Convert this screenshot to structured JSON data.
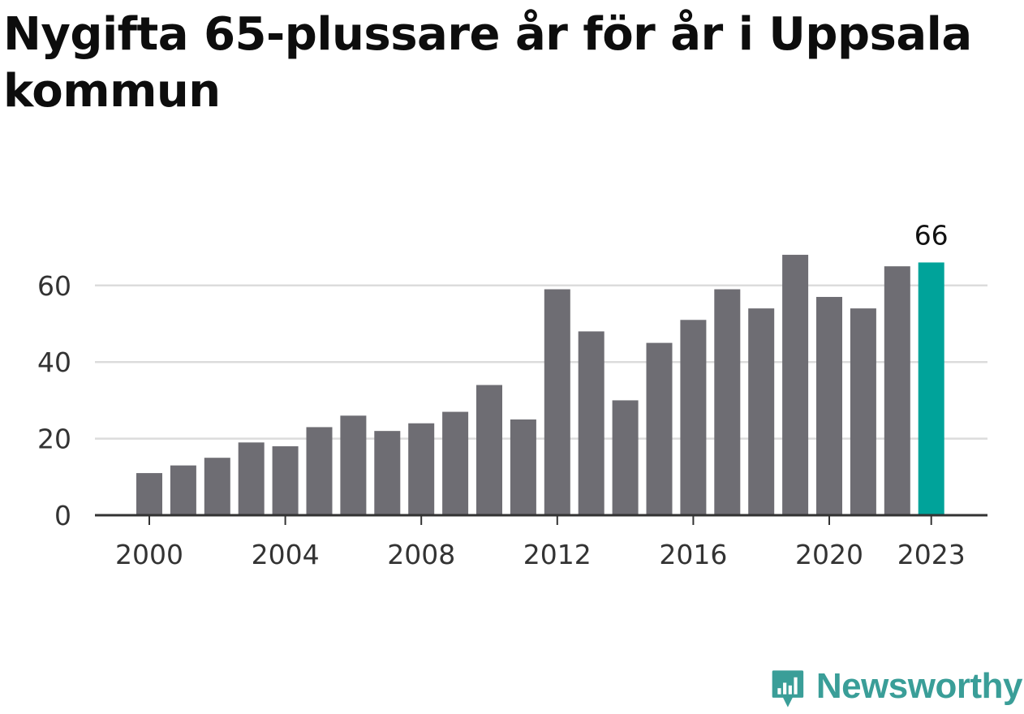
{
  "title": "Nygifta 65-plussare år för år i Uppsala kommun",
  "brand": {
    "name": "Newsworthy",
    "icon": "newsworthy-chart-bubble-icon",
    "color": "#3a9e98"
  },
  "colors": {
    "bar": "#6e6d73",
    "highlight": "#00a39a",
    "grid": "#dcdcdc",
    "axis": "#333333"
  },
  "chart_data": {
    "type": "bar",
    "title": "Nygifta 65-plussare år för år i Uppsala kommun",
    "xlabel": "",
    "ylabel": "",
    "categories": [
      "2000",
      "2001",
      "2002",
      "2003",
      "2004",
      "2005",
      "2006",
      "2007",
      "2008",
      "2009",
      "2010",
      "2011",
      "2012",
      "2013",
      "2014",
      "2015",
      "2016",
      "2017",
      "2018",
      "2019",
      "2020",
      "2021",
      "2022",
      "2023"
    ],
    "values": [
      11,
      13,
      15,
      19,
      18,
      23,
      26,
      22,
      24,
      27,
      34,
      25,
      59,
      48,
      30,
      45,
      51,
      59,
      54,
      68,
      57,
      54,
      65,
      66
    ],
    "highlight_category": "2023",
    "highlight_label": "66",
    "ylim": [
      0,
      70
    ],
    "yticks": [
      0,
      20,
      40,
      60
    ],
    "xticks": [
      "2000",
      "2004",
      "2008",
      "2012",
      "2016",
      "2020",
      "2023"
    ],
    "grid": true
  }
}
